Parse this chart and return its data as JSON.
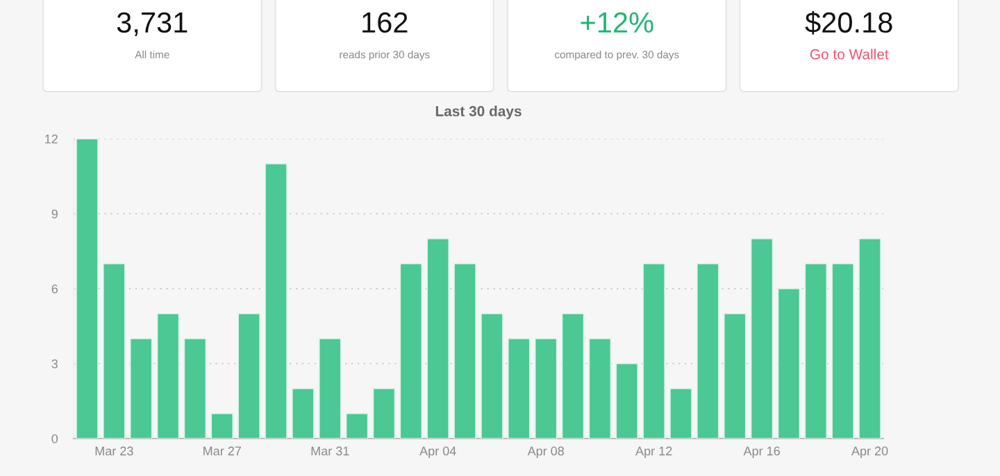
{
  "chart_data": [
    {
      "type": "other",
      "annotations": [
        "3,731",
        "All time",
        "162",
        "reads prior 30 days",
        "+12%",
        "compared to prev. 30 days",
        "$20.18",
        "Go to Wallet"
      ],
      "colors": [
        "#111111",
        "#888888",
        "#111111",
        "#888888",
        "#22b573",
        "#888888",
        "#111111",
        "#f0506e"
      ]
    },
    {
      "type": "bar",
      "title": "Last 30 days",
      "categories": [
        null,
        "Mar 23",
        null,
        null,
        null,
        "Mar 27",
        null,
        null,
        null,
        "Mar 31",
        null,
        null,
        null,
        "Apr 04",
        null,
        null,
        null,
        "Apr 08",
        null,
        null,
        null,
        "Apr 12",
        null,
        null,
        null,
        "Apr 16",
        null,
        null,
        null,
        "Apr 20"
      ],
      "values": [
        12,
        7,
        4,
        5,
        4,
        1,
        5,
        11,
        2,
        4,
        1,
        2,
        7,
        8,
        7,
        5,
        4,
        4,
        5,
        4,
        3,
        7,
        2,
        7,
        5,
        8,
        6,
        7,
        7,
        8
      ],
      "color": "#4bc893",
      "ylim": [
        0,
        12
      ],
      "yticks": [
        0,
        3,
        6,
        9,
        12
      ],
      "grid": "y"
    }
  ]
}
